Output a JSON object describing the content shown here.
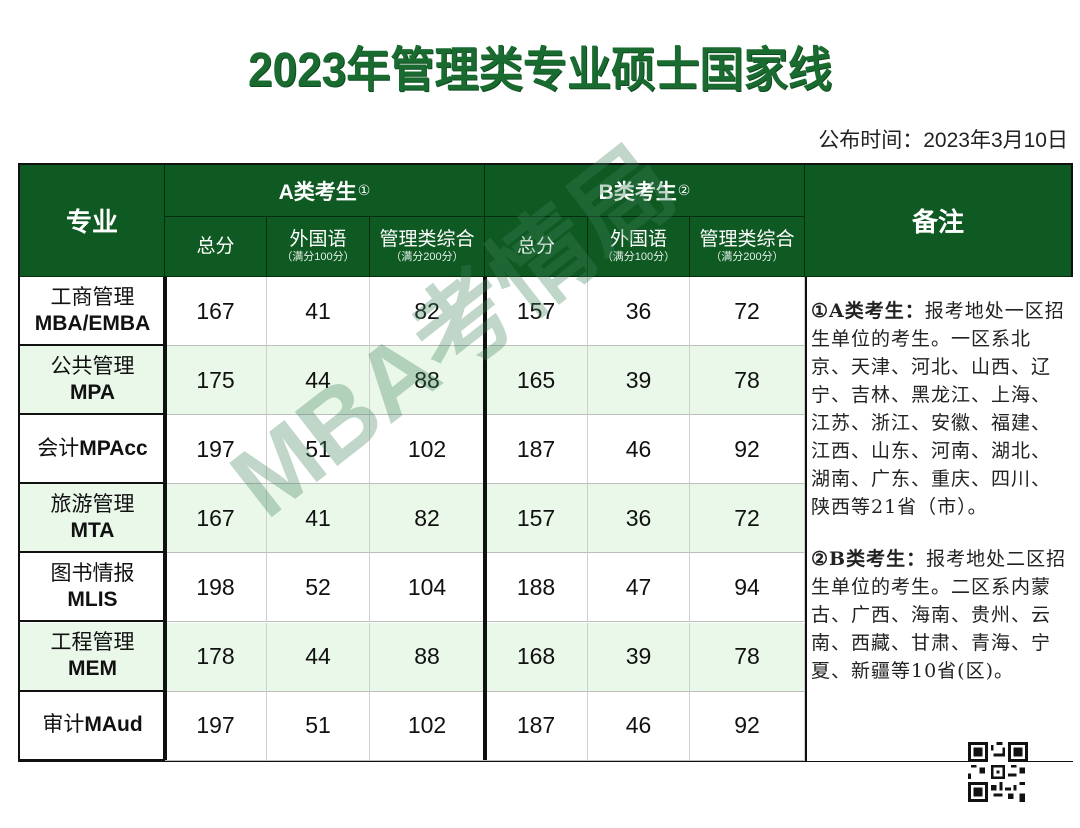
{
  "title": "2023年管理类专业硕士国家线",
  "publish": {
    "label": "公布时间：",
    "date": "2023年3月10日"
  },
  "table": {
    "headers": {
      "major": "专业",
      "groupA": {
        "label": "A类考生",
        "mark": "①"
      },
      "groupB": {
        "label": "B类考生",
        "mark": "②"
      },
      "notes": "备注",
      "sub": [
        {
          "label": "总分",
          "note": ""
        },
        {
          "label": "外国语",
          "note": "（满分100分）"
        },
        {
          "label": "管理类综合",
          "note": "（满分200分）"
        }
      ]
    },
    "rows": [
      {
        "cn": "工商管理",
        "en": "MBA/EMBA",
        "a": [
          "167",
          "41",
          "82"
        ],
        "b": [
          "157",
          "36",
          "72"
        ]
      },
      {
        "cn": "公共管理",
        "en": "MPA",
        "a": [
          "175",
          "44",
          "88"
        ],
        "b": [
          "165",
          "39",
          "78"
        ]
      },
      {
        "cn": "会计",
        "en": "MPAcc",
        "a": [
          "197",
          "51",
          "102"
        ],
        "b": [
          "187",
          "46",
          "92"
        ],
        "inline": true
      },
      {
        "cn": "旅游管理",
        "en": "MTA",
        "a": [
          "167",
          "41",
          "82"
        ],
        "b": [
          "157",
          "36",
          "72"
        ]
      },
      {
        "cn": "图书情报",
        "en": "MLIS",
        "a": [
          "198",
          "52",
          "104"
        ],
        "b": [
          "188",
          "47",
          "94"
        ]
      },
      {
        "cn": "工程管理",
        "en": "MEM",
        "a": [
          "178",
          "44",
          "88"
        ],
        "b": [
          "168",
          "39",
          "78"
        ]
      },
      {
        "cn": "审计",
        "en": "MAud",
        "a": [
          "197",
          "51",
          "102"
        ],
        "b": [
          "187",
          "46",
          "92"
        ],
        "inline": true
      }
    ],
    "notes": {
      "a": {
        "head": "①A类考生：",
        "text": "报考地处一区招生单位的考生。一区系北京、天津、河北、山西、辽宁、吉林、黑龙江、上海、江苏、浙江、安徽、福建、江西、山东、河南、湖北、湖南、广东、重庆、四川、陕西等21省（市）。"
      },
      "b": {
        "head": "②B类考生：",
        "text": "报考地处二区招生单位的考生。二区系内蒙古、广西、海南、贵州、云南、西藏、甘肃、青海、宁夏、新疆等10省(区)。"
      }
    }
  },
  "watermark": "MBA考情局",
  "colors": {
    "header_green": "#0f5a23",
    "title_green": "#1a6b30",
    "stripe": "#eaf8ea"
  }
}
